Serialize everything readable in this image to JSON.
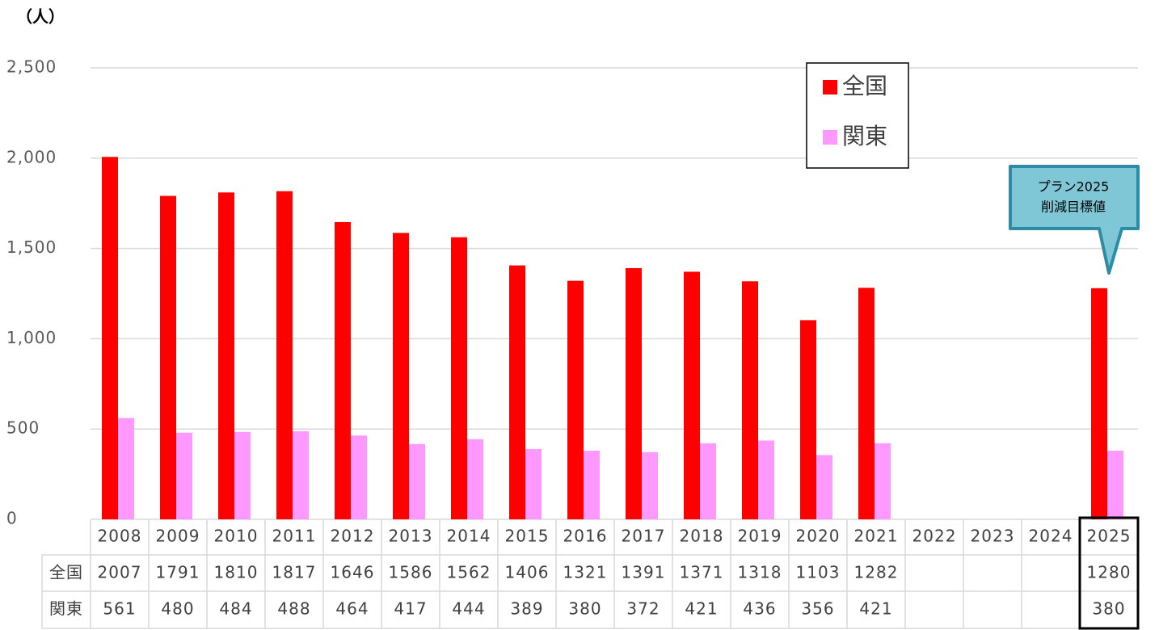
{
  "chart_data": {
    "type": "bar",
    "y_unit": "（人）",
    "categories": [
      "2008",
      "2009",
      "2010",
      "2011",
      "2012",
      "2013",
      "2014",
      "2015",
      "2016",
      "2017",
      "2018",
      "2019",
      "2020",
      "2021",
      "2022",
      "2023",
      "2024",
      "2025"
    ],
    "series": [
      {
        "name": "全国",
        "color": "#ff0000",
        "values": [
          2007,
          1791,
          1810,
          1817,
          1646,
          1586,
          1562,
          1406,
          1321,
          1391,
          1371,
          1318,
          1103,
          1282,
          null,
          null,
          null,
          1280
        ]
      },
      {
        "name": "関東",
        "color": "#ff99ff",
        "values": [
          561,
          480,
          484,
          488,
          464,
          417,
          444,
          389,
          380,
          372,
          421,
          436,
          356,
          421,
          null,
          null,
          null,
          380
        ]
      }
    ],
    "ylim": [
      0,
      2500
    ],
    "yticks": [
      0,
      500,
      {
        "value": 1000,
        "label": "1,000"
      },
      {
        "value": 1500,
        "label": "1,500"
      },
      {
        "value": 2000,
        "label": "2,000"
      },
      {
        "value": 2500,
        "label": "2,500"
      }
    ],
    "grid": true,
    "legend": "top-right",
    "annotation": [
      "プラン2025",
      "削減目標値"
    ]
  }
}
